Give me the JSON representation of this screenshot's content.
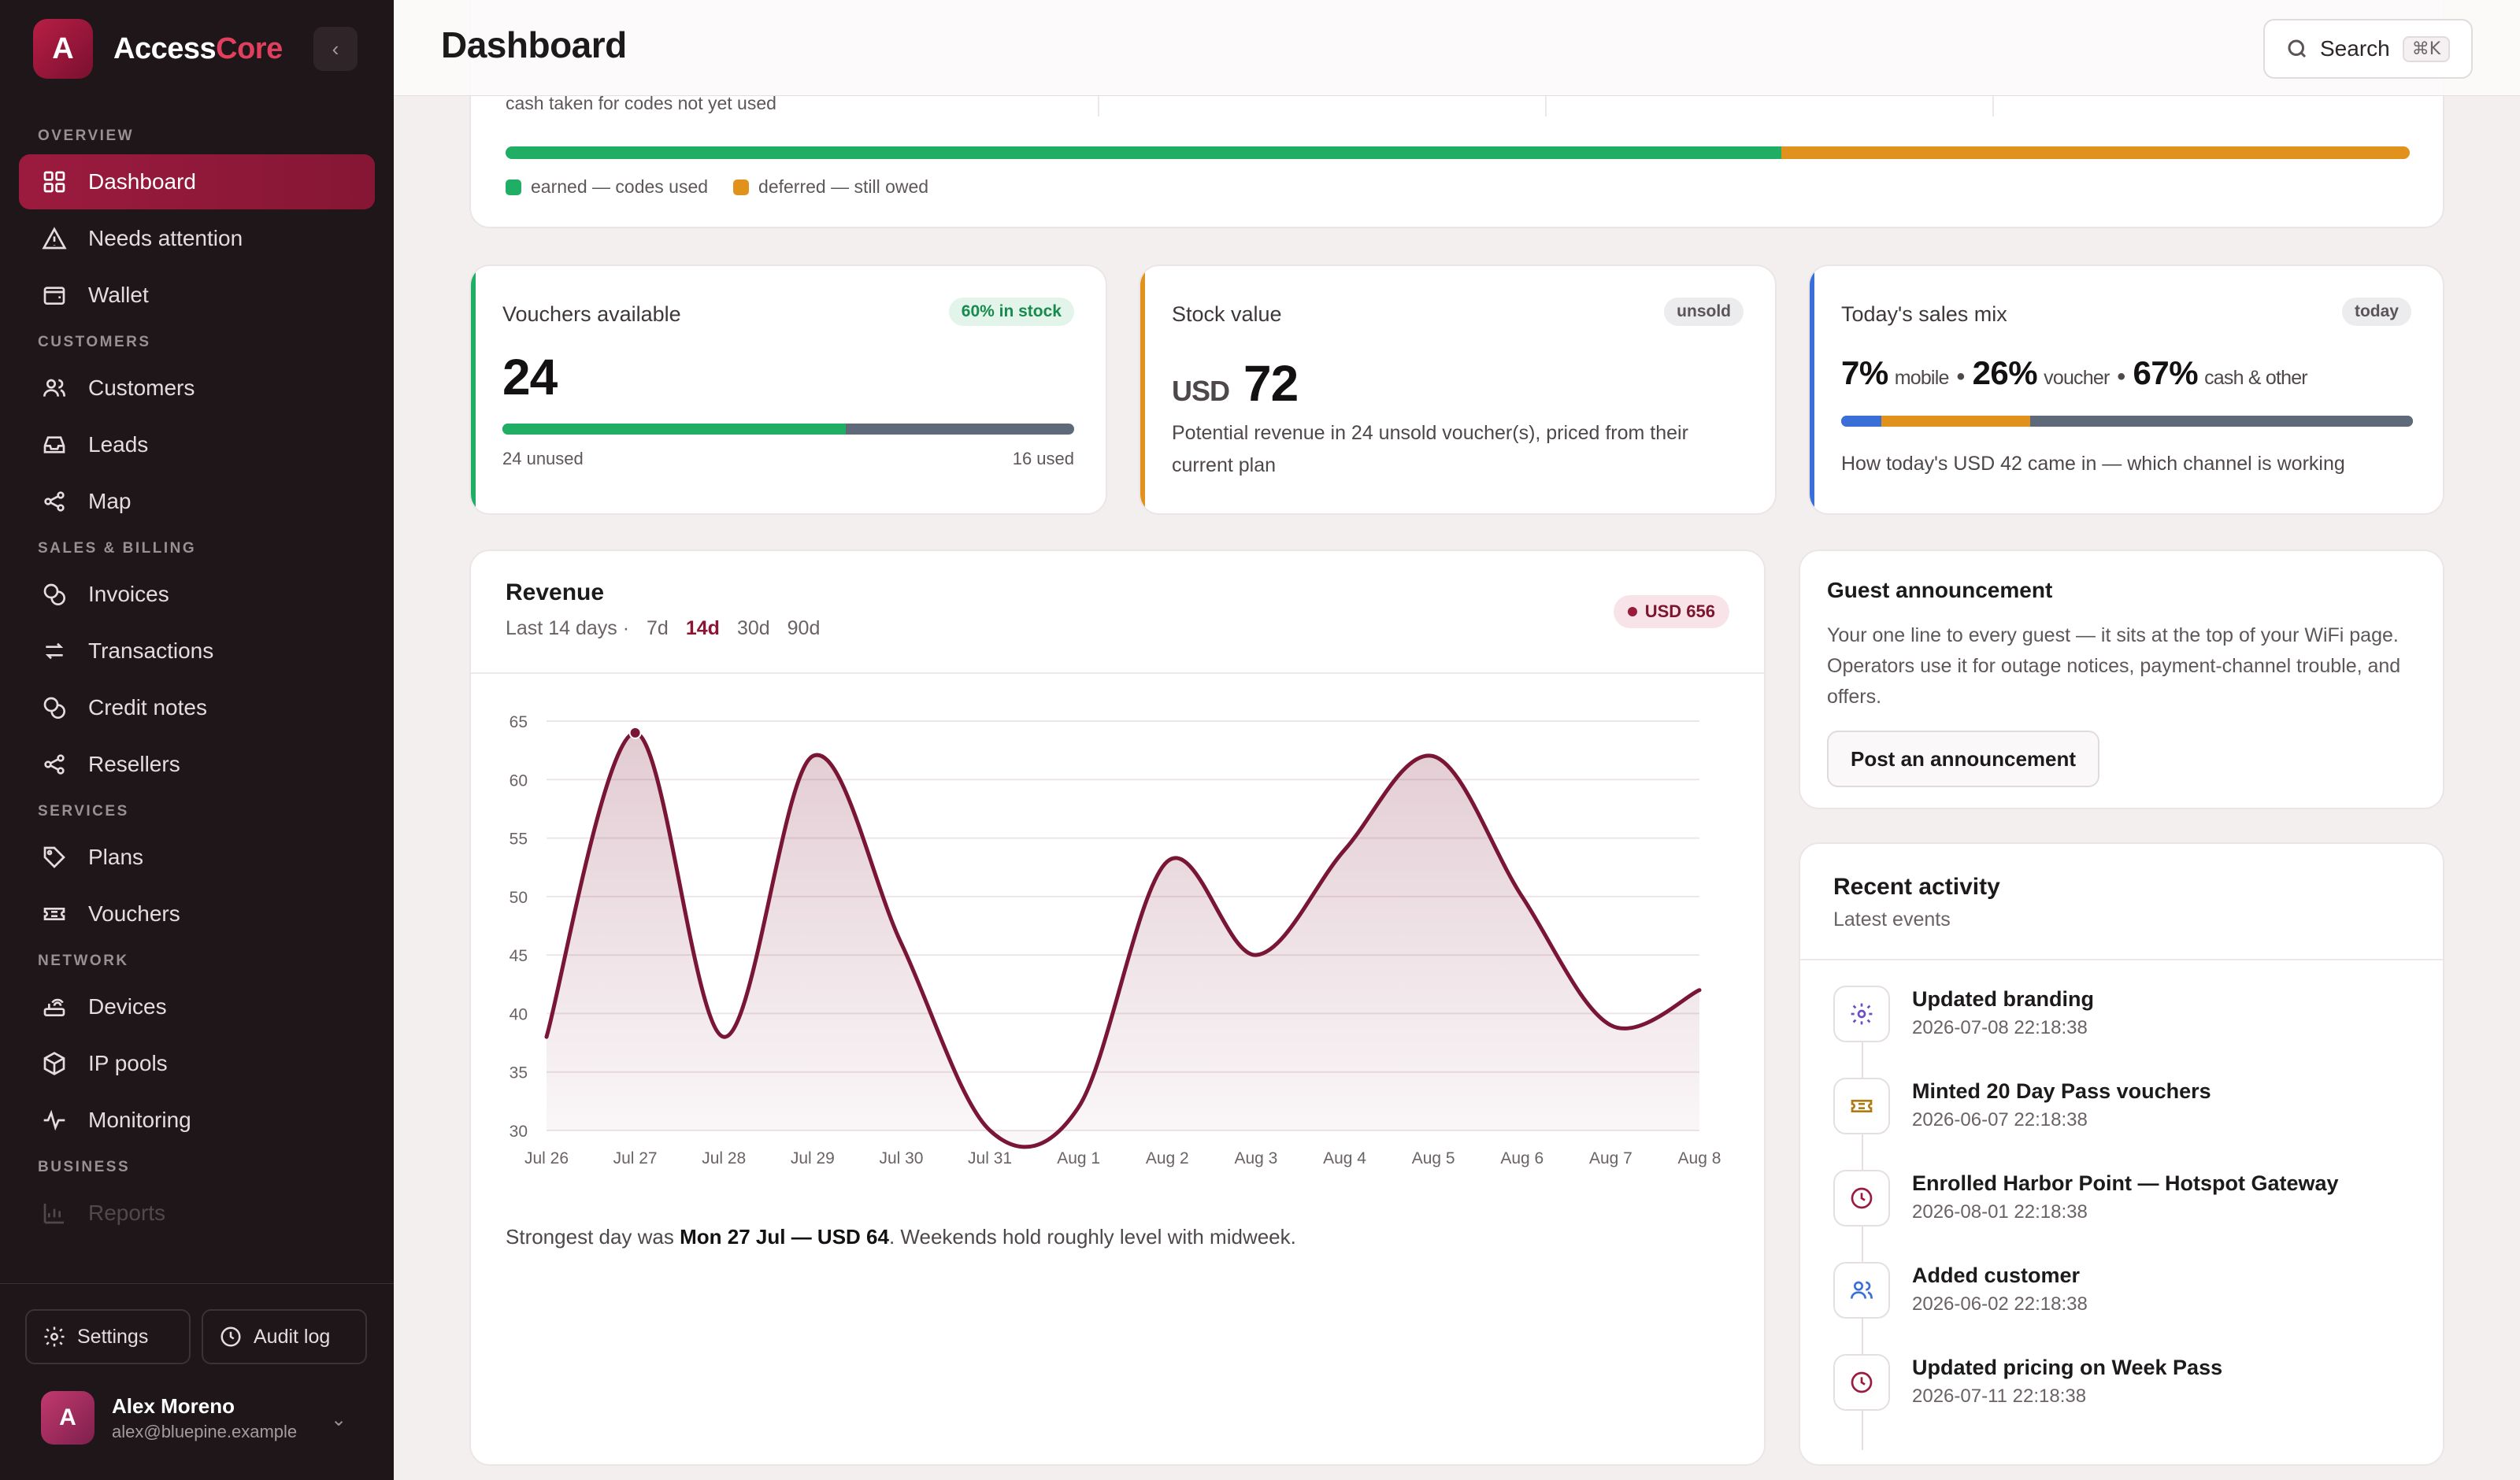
{
  "app": {
    "logo_letter": "A",
    "name_part1": "Access",
    "name_part2": "Core"
  },
  "colors": {
    "brand": "#9b1b3e",
    "green": "#1fae63",
    "amber": "#e0921c",
    "slate": "#5e6a79",
    "blue": "#3b6fd8"
  },
  "sidebar": {
    "sections": [
      {
        "title": "OVERVIEW",
        "items": [
          {
            "label": "Dashboard",
            "icon": "grid-icon",
            "active": true
          },
          {
            "label": "Needs attention",
            "icon": "warning-icon"
          },
          {
            "label": "Wallet",
            "icon": "wallet-icon"
          }
        ]
      },
      {
        "title": "CUSTOMERS",
        "items": [
          {
            "label": "Customers",
            "icon": "users-icon"
          },
          {
            "label": "Leads",
            "icon": "inbox-icon"
          },
          {
            "label": "Map",
            "icon": "share-icon"
          }
        ]
      },
      {
        "title": "SALES & BILLING",
        "items": [
          {
            "label": "Invoices",
            "icon": "coins-icon"
          },
          {
            "label": "Transactions",
            "icon": "swap-icon"
          },
          {
            "label": "Credit notes",
            "icon": "coins-icon"
          },
          {
            "label": "Resellers",
            "icon": "share-icon"
          }
        ]
      },
      {
        "title": "SERVICES",
        "items": [
          {
            "label": "Plans",
            "icon": "tag-icon"
          },
          {
            "label": "Vouchers",
            "icon": "ticket-icon"
          }
        ]
      },
      {
        "title": "NETWORK",
        "items": [
          {
            "label": "Devices",
            "icon": "router-icon"
          },
          {
            "label": "IP pools",
            "icon": "cube-icon"
          },
          {
            "label": "Monitoring",
            "icon": "pulse-icon"
          }
        ]
      },
      {
        "title": "BUSINESS",
        "items": [
          {
            "label": "Reports",
            "icon": "chart-icon",
            "faded": true
          }
        ]
      }
    ],
    "footer": {
      "settings_label": "Settings",
      "audit_label": "Audit log",
      "user_initial": "A",
      "user_name": "Alex Moreno",
      "user_email": "alex@bluepine.example"
    }
  },
  "header": {
    "title": "Dashboard",
    "search_label": "Search",
    "search_shortcut": "⌘K"
  },
  "top_card": {
    "subtitle": "cash taken for codes not yet used",
    "earned_fraction": 0.67,
    "deferred_fraction": 0.33,
    "legend_earned": "earned — codes used",
    "legend_deferred": "deferred — still owed"
  },
  "stats": {
    "vouchers": {
      "label": "Vouchers available",
      "badge": "60% in stock",
      "value": "24",
      "unused_fraction": 0.6,
      "foot_left": "24 unused",
      "foot_right": "16 used"
    },
    "stock": {
      "label": "Stock value",
      "badge": "unsold",
      "currency": "USD",
      "value": "72",
      "description": "Potential revenue in 24 unsold voucher(s), priced from their current plan"
    },
    "mix": {
      "label": "Today's sales mix",
      "badge": "today",
      "mobile_pct": "7%",
      "mobile_label": "mobile",
      "voucher_pct": "26%",
      "voucher_label": "voucher",
      "cash_pct": "67%",
      "cash_label": "cash & other",
      "separator": "•",
      "mobile_fraction": 0.07,
      "voucher_fraction": 0.26,
      "cash_fraction": 0.67,
      "description": "How today's USD 42 came in — which channel is working"
    }
  },
  "revenue": {
    "title": "Revenue",
    "subtitle": "Last 14 days ·",
    "ranges": [
      "7d",
      "14d",
      "30d",
      "90d"
    ],
    "active_range": "14d",
    "badge": "USD 656",
    "insight_prefix": "Strongest day was ",
    "insight_bold": "Mon 27 Jul — USD 64",
    "insight_suffix": ". Weekends hold roughly level with midweek."
  },
  "chart_data": {
    "type": "area",
    "categories": [
      "Jul 26",
      "Jul 27",
      "Jul 28",
      "Jul 29",
      "Jul 30",
      "Jul 31",
      "Aug 1",
      "Aug 2",
      "Aug 3",
      "Aug 4",
      "Aug 5",
      "Aug 6",
      "Aug 7",
      "Aug 8"
    ],
    "series": [
      {
        "values": [
          38,
          64,
          38,
          62,
          46,
          30,
          32,
          53,
          45,
          54,
          62,
          50,
          39,
          42
        ]
      }
    ],
    "highlight_index": 1,
    "yticks": [
      30,
      35,
      40,
      45,
      50,
      55,
      60,
      65
    ],
    "ylim": [
      30,
      65
    ],
    "grid": true,
    "color": "#7a1635"
  },
  "announcement": {
    "title": "Guest announcement",
    "text": "Your one line to every guest — it sits at the top of your WiFi page. Operators use it for outage notices, payment-channel trouble, and offers.",
    "button": "Post an announcement"
  },
  "activity": {
    "title": "Recent activity",
    "subtitle": "Latest events",
    "events": [
      {
        "title": "Updated branding",
        "time": "2026-07-08 22:18:38",
        "icon": "gear-icon",
        "color": "#6b4fc0"
      },
      {
        "title": "Minted 20 Day Pass vouchers",
        "time": "2026-06-07 22:18:38",
        "icon": "ticket-icon",
        "color": "#b07a10"
      },
      {
        "title": "Enrolled Harbor Point — Hotspot Gateway",
        "time": "2026-08-01 22:18:38",
        "icon": "clock-icon",
        "color": "#9b1b3e"
      },
      {
        "title": "Added customer",
        "time": "2026-06-02 22:18:38",
        "icon": "users-icon",
        "color": "#3b6fd8"
      },
      {
        "title": "Updated pricing on Week Pass",
        "time": "2026-07-11 22:18:38",
        "icon": "clock-icon",
        "color": "#9b1b3e"
      }
    ]
  }
}
